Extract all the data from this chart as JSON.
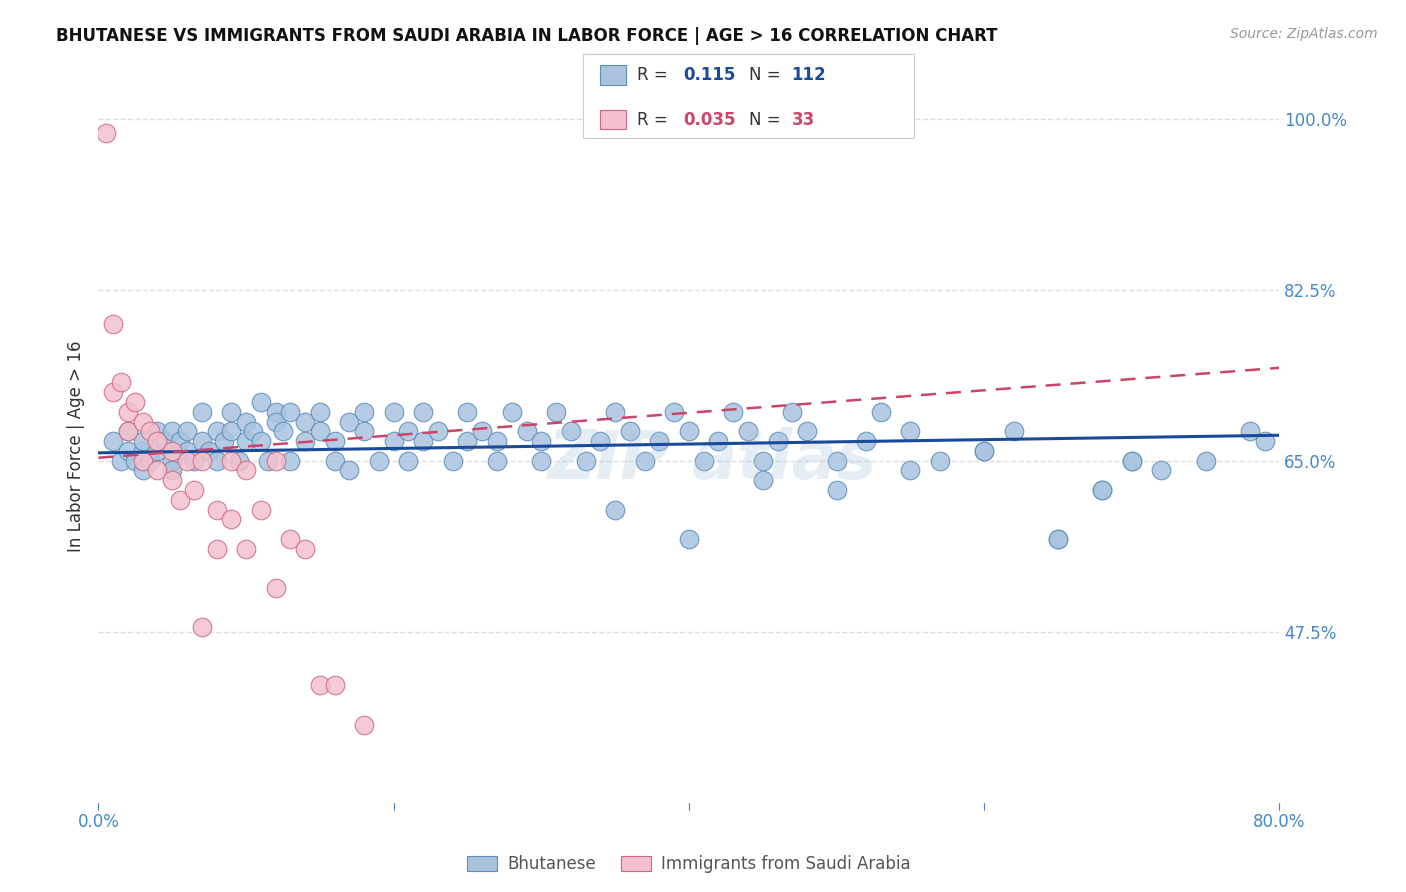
{
  "title": "BHUTANESE VS IMMIGRANTS FROM SAUDI ARABIA IN LABOR FORCE | AGE > 16 CORRELATION CHART",
  "source": "Source: ZipAtlas.com",
  "ylabel": "In Labor Force | Age > 16",
  "xlim": [
    0.0,
    0.8
  ],
  "ylim": [
    0.3,
    1.03
  ],
  "yticks": [
    0.475,
    0.65,
    0.825,
    1.0
  ],
  "ytick_labels": [
    "47.5%",
    "65.0%",
    "82.5%",
    "100.0%"
  ],
  "xticks": [
    0.0,
    0.2,
    0.4,
    0.6,
    0.8
  ],
  "xtick_labels": [
    "0.0%",
    "",
    "",
    "",
    "80.0%"
  ],
  "blue_color": "#aac4e0",
  "blue_edge_color": "#5b8db8",
  "pink_color": "#f4c0ce",
  "pink_edge_color": "#d06880",
  "blue_line_color": "#1a4a99",
  "pink_line_color": "#cc4466",
  "R_blue": 0.115,
  "N_blue": 112,
  "R_pink": 0.035,
  "N_pink": 33,
  "blue_scatter_x": [
    0.01,
    0.015,
    0.02,
    0.02,
    0.025,
    0.03,
    0.03,
    0.03,
    0.035,
    0.04,
    0.04,
    0.045,
    0.05,
    0.05,
    0.05,
    0.055,
    0.06,
    0.06,
    0.065,
    0.07,
    0.07,
    0.075,
    0.08,
    0.08,
    0.085,
    0.09,
    0.09,
    0.095,
    0.1,
    0.1,
    0.105,
    0.11,
    0.11,
    0.115,
    0.12,
    0.12,
    0.125,
    0.13,
    0.13,
    0.14,
    0.14,
    0.15,
    0.15,
    0.16,
    0.16,
    0.17,
    0.17,
    0.18,
    0.18,
    0.19,
    0.2,
    0.2,
    0.21,
    0.21,
    0.22,
    0.22,
    0.23,
    0.24,
    0.25,
    0.25,
    0.26,
    0.27,
    0.27,
    0.28,
    0.29,
    0.3,
    0.3,
    0.31,
    0.32,
    0.33,
    0.34,
    0.35,
    0.36,
    0.37,
    0.38,
    0.39,
    0.4,
    0.41,
    0.42,
    0.43,
    0.44,
    0.45,
    0.46,
    0.47,
    0.48,
    0.5,
    0.52,
    0.53,
    0.55,
    0.57,
    0.6,
    0.62,
    0.65,
    0.68,
    0.7,
    0.72,
    0.35,
    0.4,
    0.45,
    0.5,
    0.55,
    0.6,
    0.75,
    0.78,
    0.79,
    0.65,
    0.68,
    0.7
  ],
  "blue_scatter_y": [
    0.67,
    0.65,
    0.68,
    0.66,
    0.65,
    0.66,
    0.64,
    0.67,
    0.65,
    0.66,
    0.68,
    0.67,
    0.65,
    0.68,
    0.64,
    0.67,
    0.68,
    0.66,
    0.65,
    0.7,
    0.67,
    0.66,
    0.68,
    0.65,
    0.67,
    0.7,
    0.68,
    0.65,
    0.69,
    0.67,
    0.68,
    0.71,
    0.67,
    0.65,
    0.7,
    0.69,
    0.68,
    0.65,
    0.7,
    0.67,
    0.69,
    0.68,
    0.7,
    0.65,
    0.67,
    0.64,
    0.69,
    0.68,
    0.7,
    0.65,
    0.67,
    0.7,
    0.68,
    0.65,
    0.67,
    0.7,
    0.68,
    0.65,
    0.67,
    0.7,
    0.68,
    0.65,
    0.67,
    0.7,
    0.68,
    0.65,
    0.67,
    0.7,
    0.68,
    0.65,
    0.67,
    0.7,
    0.68,
    0.65,
    0.67,
    0.7,
    0.68,
    0.65,
    0.67,
    0.7,
    0.68,
    0.65,
    0.67,
    0.7,
    0.68,
    0.65,
    0.67,
    0.7,
    0.68,
    0.65,
    0.66,
    0.68,
    0.57,
    0.62,
    0.65,
    0.64,
    0.6,
    0.57,
    0.63,
    0.62,
    0.64,
    0.66,
    0.65,
    0.68,
    0.67,
    0.57,
    0.62,
    0.65
  ],
  "pink_scatter_x": [
    0.005,
    0.01,
    0.01,
    0.015,
    0.02,
    0.02,
    0.025,
    0.03,
    0.03,
    0.035,
    0.04,
    0.04,
    0.05,
    0.05,
    0.055,
    0.06,
    0.065,
    0.07,
    0.08,
    0.08,
    0.09,
    0.09,
    0.1,
    0.1,
    0.11,
    0.12,
    0.13,
    0.14,
    0.15,
    0.07,
    0.12,
    0.16,
    0.18
  ],
  "pink_scatter_y": [
    0.985,
    0.79,
    0.72,
    0.73,
    0.7,
    0.68,
    0.71,
    0.69,
    0.65,
    0.68,
    0.64,
    0.67,
    0.66,
    0.63,
    0.61,
    0.65,
    0.62,
    0.65,
    0.6,
    0.56,
    0.65,
    0.59,
    0.64,
    0.56,
    0.6,
    0.65,
    0.57,
    0.56,
    0.42,
    0.48,
    0.52,
    0.42,
    0.38
  ],
  "blue_trend_y_start": 0.658,
  "blue_trend_y_end": 0.676,
  "pink_trend_y_start": 0.653,
  "pink_trend_y_end": 0.745,
  "background_color": "#ffffff",
  "grid_color": "#dddddd",
  "axis_label_color": "#4488cc",
  "ylabel_color": "#333333"
}
